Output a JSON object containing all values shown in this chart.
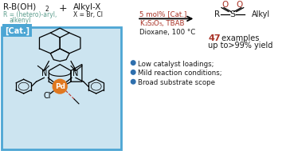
{
  "bg_color": "#ffffff",
  "box_color": "#4da6d4",
  "box_bg": "#cce4f0",
  "cat_label": "[Cat.]",
  "color_red": "#a93226",
  "color_dark": "#1a1a1a",
  "color_teal": "#5d9e8e",
  "color_blue_bullet": "#2e6fad",
  "bullet1": "Low catalyst loadings;",
  "bullet2": "Mild reaction conditions;",
  "bullet3": "Broad substrate scope"
}
